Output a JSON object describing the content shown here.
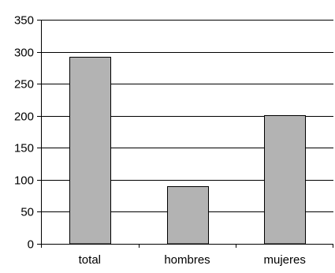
{
  "chart_data": {
    "type": "bar",
    "title": "",
    "xlabel": "",
    "ylabel": "",
    "categories": [
      "total",
      "hombres",
      "mujeres"
    ],
    "values": [
      292,
      90,
      201
    ],
    "ylim": [
      0,
      350
    ],
    "yticks": [
      0,
      50,
      100,
      150,
      200,
      250,
      300,
      350
    ],
    "grid": true,
    "legend": "none",
    "colors": {
      "bar_fill": "#b3b3b3",
      "bar_stroke": "#000000",
      "grid": "#000000",
      "axis": "#000000"
    }
  }
}
